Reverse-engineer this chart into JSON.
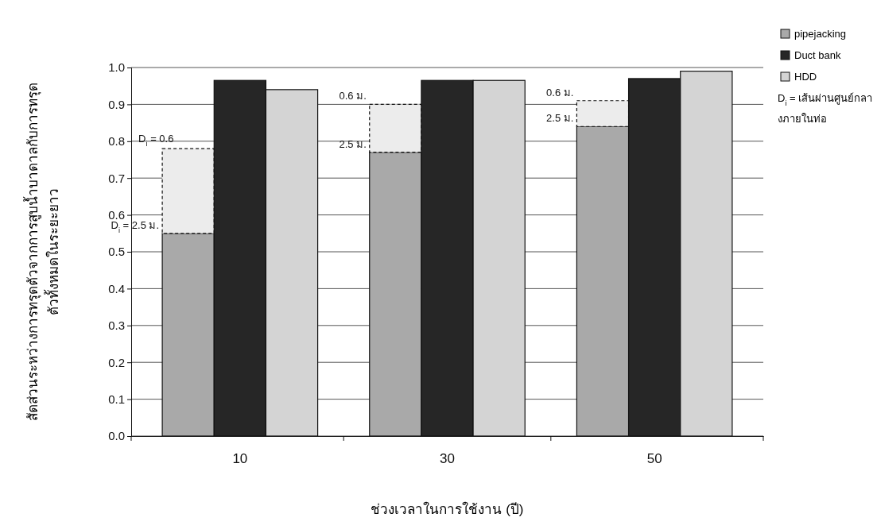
{
  "chart_data": {
    "type": "bar",
    "ylabel": "สัดส่วนระหว่างการทรุดตัวจากการสูบน้ำบาดาลกับการทรุด\nตัวทั้งหมดในระยะยาว",
    "xlabel": "ช่วงเวลาในการใช้งาน (ปี)",
    "categories": [
      null,
      "10",
      null,
      null,
      null,
      "30",
      null,
      null,
      null,
      "50",
      null
    ],
    "stacked": true,
    "series": [
      {
        "name": "pipejacking",
        "color": "#a9a9a9",
        "values": [
          0.55,
          null,
          null,
          null,
          0.77,
          null,
          null,
          null,
          0.84,
          null,
          null
        ]
      },
      {
        "color": "#ececec",
        "values": [
          0.23,
          null,
          null,
          null,
          0.13,
          null,
          null,
          null,
          0.07,
          null,
          null
        ],
        "line_style": "dashed"
      },
      {
        "name": "Duct bank",
        "color": "#262626",
        "values": [
          null,
          0.965,
          null,
          null,
          null,
          0.965,
          null,
          null,
          null,
          0.97,
          null
        ]
      },
      {
        "name": "HDD",
        "color": "#d4d4d4",
        "values": [
          null,
          null,
          0.94,
          null,
          null,
          null,
          0.965,
          null,
          null,
          null,
          0.99
        ]
      }
    ],
    "ylim": [
      0,
      1
    ],
    "yticks": [
      {
        "value": 0,
        "label": "0.0"
      },
      0.1,
      0.2,
      0.3,
      0.4,
      0.5,
      0.6,
      0.7,
      0.8,
      0.9,
      {
        "value": 1,
        "label": "1.0"
      }
    ],
    "grid": "y",
    "legend": "top right",
    "legend_title": "D$_{i}$ = เส้นผ่านศูนย์กลางภายในท่อ",
    "annotations": [
      "D$_{i}$ = 0.6",
      "D$_{i}$ = 2.5 ม.",
      "0.6 ม.",
      "2.5 ม.",
      "0.6 ม.",
      "2.5 ม."
    ]
  }
}
